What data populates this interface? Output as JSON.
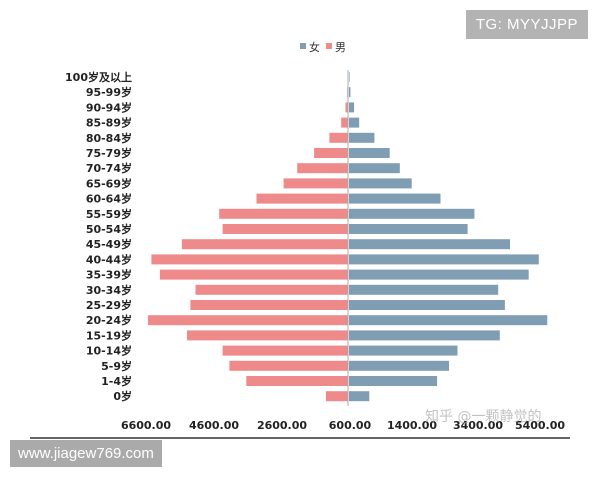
{
  "badges": {
    "tg": "TG: MYYJJPP",
    "url": "www.jiagew769.com",
    "watermark": "知乎 @一颗静觉的"
  },
  "chart_data": {
    "type": "bar",
    "orientation": "horizontal-population-pyramid",
    "title": "",
    "xlabel": "",
    "ylabel": "",
    "categories": [
      "0岁",
      "1-4岁",
      "5-9岁",
      "10-14岁",
      "15-19岁",
      "20-24岁",
      "25-29岁",
      "30-34岁",
      "35-39岁",
      "40-44岁",
      "45-49岁",
      "50-54岁",
      "55-59岁",
      "60-64岁",
      "65-69岁",
      "70-74岁",
      "75-79岁",
      "80-84岁",
      "85-89岁",
      "90-94岁",
      "95-99岁",
      "100岁及以上"
    ],
    "series": [
      {
        "name": "女",
        "color": "#7f9db3",
        "side": "right",
        "values": [
          1200,
          5200,
          5900,
          6400,
          8900,
          11700,
          9200,
          8800,
          10600,
          11200,
          9500,
          7000,
          7400,
          5400,
          3700,
          3000,
          2400,
          1500,
          600,
          300,
          80,
          20
        ]
      },
      {
        "name": "男",
        "color": "#ef8a8a",
        "side": "left",
        "values": [
          1300,
          6000,
          7000,
          7400,
          9500,
          11800,
          9300,
          9000,
          11100,
          11600,
          9800,
          7400,
          7600,
          5400,
          3800,
          3000,
          2000,
          1100,
          400,
          150,
          50,
          15
        ]
      }
    ],
    "axis": {
      "tick_labels": [
        "6600.00",
        "4600.00",
        "2600.00",
        "600.00",
        "1400.00",
        "3400.00",
        "5400.00"
      ]
    },
    "xlim": [
      -11900,
      11900
    ],
    "legend_position": "top-center",
    "grid": false
  }
}
